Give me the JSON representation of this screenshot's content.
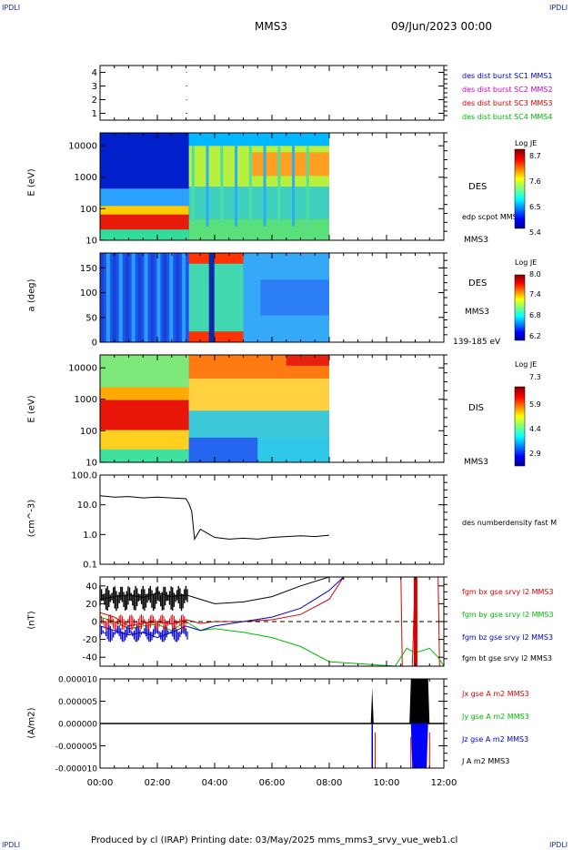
{
  "header": {
    "corner_tl": "IPDLI",
    "corner_tr": "IPDLI",
    "corner_bl": "IPDLI",
    "corner_br": "IPDLI",
    "mission": "MMS3",
    "date": "09/Jun/2023 00:00"
  },
  "footer": {
    "credit": "Produced by cl (IRAP)   Printing date: 03/May/2025   mms_mms3_srvy_vue_web1.cl"
  },
  "colors": {
    "c1": "#0000cc",
    "c2": "#cc00cc",
    "c3": "#dd0000",
    "c4": "#00bb00",
    "black": "#000000"
  },
  "chart_data": [
    {
      "type": "scatter",
      "ylabel": "",
      "yticks": [
        "4",
        "3",
        "2",
        "1"
      ],
      "x_range_hours": [
        0,
        12
      ],
      "legend": [
        {
          "name": "des dist burst SC1 MMS1",
          "color": "#0000cc"
        },
        {
          "name": "des dist burst SC2 MMS2",
          "color": "#cc00cc"
        },
        {
          "name": "des dist burst SC3 MMS3",
          "color": "#dd0000"
        },
        {
          "name": "des dist burst SC4 MMS4",
          "color": "#00bb00"
        }
      ]
    },
    {
      "type": "heatmap",
      "ylabel": "E (eV)",
      "yticks": [
        "10000",
        "1000",
        "100",
        "10"
      ],
      "species": "DES",
      "overlay_label": "edp scpot MMS3",
      "bottom_label": "MMS3",
      "colorbar": {
        "title": "Log JE",
        "ticks": [
          "8.7",
          "7.6",
          "6.5",
          "5.4"
        ]
      }
    },
    {
      "type": "heatmap",
      "ylabel": "a (deg)",
      "yticks": [
        "150",
        "100",
        "50",
        "0"
      ],
      "species": "DES",
      "spacecraft_label": "MMS3",
      "energy_label": "139-185 eV",
      "colorbar": {
        "title": "Log JE",
        "ticks": [
          "8.0",
          "7.4",
          "6.8",
          "6.2"
        ]
      }
    },
    {
      "type": "heatmap",
      "ylabel": "E (eV)",
      "yticks": [
        "10000",
        "1000",
        "100",
        "10"
      ],
      "species": "DIS",
      "bottom_label": "MMS3",
      "colorbar": {
        "title": "Log JE",
        "ticks": [
          "7.3",
          "5.9",
          "4.4",
          "2.9"
        ]
      }
    },
    {
      "type": "line",
      "ylabel": "(cm^-3)",
      "yticks": [
        "100.0",
        "10.0",
        "1.0",
        "0.1"
      ],
      "log_y": true,
      "ylim": [
        0.1,
        100
      ],
      "series": [
        {
          "name": "des numberdensity fast M",
          "color": "#000000",
          "x": [
            0,
            0.5,
            1,
            1.5,
            2,
            2.5,
            3,
            3.1,
            3.2,
            3.3,
            3.5,
            4,
            4.5,
            5,
            5.5,
            6,
            6.5,
            7,
            7.5,
            8
          ],
          "y": [
            20,
            18,
            19,
            17,
            18,
            17,
            16,
            11,
            6,
            0.7,
            1.5,
            0.8,
            0.7,
            0.75,
            0.7,
            0.8,
            0.85,
            0.9,
            0.85,
            0.95
          ]
        }
      ]
    },
    {
      "type": "line",
      "ylabel": "(nT)",
      "yticks": [
        "40",
        "20",
        "0",
        "-20",
        "-40"
      ],
      "ylim": [
        -50,
        50
      ],
      "series": [
        {
          "name": "fgm bx gse srvy l2 MMS3",
          "color": "#dd0000",
          "x": [
            0,
            0.5,
            1,
            1.5,
            2,
            2.5,
            3,
            3.5,
            4,
            5,
            6,
            7,
            8,
            8.5,
            10.5,
            10.55,
            10.9,
            11.0,
            11.8,
            11.85
          ],
          "y": [
            10,
            5,
            -5,
            -2,
            0,
            -3,
            2,
            -2,
            0,
            0,
            2,
            8,
            25,
            60,
            60,
            -50,
            -50,
            60,
            60,
            -50
          ]
        },
        {
          "name": "fgm by gse srvy l2 MMS3",
          "color": "#00bb00",
          "x": [
            0,
            0.5,
            1,
            1.5,
            2,
            2.5,
            3,
            3.5,
            4,
            5,
            6,
            7,
            8,
            10.3,
            10.5,
            10.7,
            11.0,
            11.5,
            11.8,
            12
          ],
          "y": [
            5,
            0,
            -8,
            -5,
            -3,
            -10,
            0,
            -10,
            -8,
            -12,
            -18,
            -28,
            -45,
            -50,
            -40,
            -30,
            -35,
            -30,
            -40,
            -50
          ]
        },
        {
          "name": "fgm bz gse srvy l2 MMS3",
          "color": "#0000cc",
          "x": [
            0,
            0.5,
            1,
            1.5,
            2,
            2.5,
            3,
            3.5,
            4,
            5,
            6,
            7,
            8,
            8.5
          ],
          "y": [
            -5,
            -10,
            -15,
            -12,
            -18,
            -12,
            -5,
            -10,
            -5,
            0,
            5,
            15,
            35,
            60
          ]
        },
        {
          "name": "fgm bt gse srvy l2 MMS3",
          "color": "#000000",
          "x": [
            0,
            0.5,
            1,
            1.5,
            2,
            2.5,
            3,
            3.5,
            4,
            5,
            6,
            7,
            8,
            8.5
          ],
          "y": [
            25,
            28,
            30,
            27,
            32,
            28,
            30,
            25,
            20,
            22,
            28,
            40,
            55,
            70
          ]
        }
      ]
    },
    {
      "type": "line",
      "ylabel": "(A/m2)",
      "yticks": [
        "0.000010",
        "0.000005",
        "0.000000",
        "-0.000005",
        "-0.000010"
      ],
      "ylim": [
        -1e-05,
        1e-05
      ],
      "xticks": [
        "00:00",
        "02:00",
        "04:00",
        "06:00",
        "08:00",
        "10:00",
        "12:00"
      ],
      "series": [
        {
          "name": "Jx gse A m2 MMS3",
          "color": "#dd0000"
        },
        {
          "name": "Jy gse A m2 MMS3",
          "color": "#00bb00"
        },
        {
          "name": "Jz gse A m2 MMS3",
          "color": "#0000cc"
        },
        {
          "name": "J A m2 MMS3",
          "color": "#000000"
        }
      ]
    }
  ]
}
